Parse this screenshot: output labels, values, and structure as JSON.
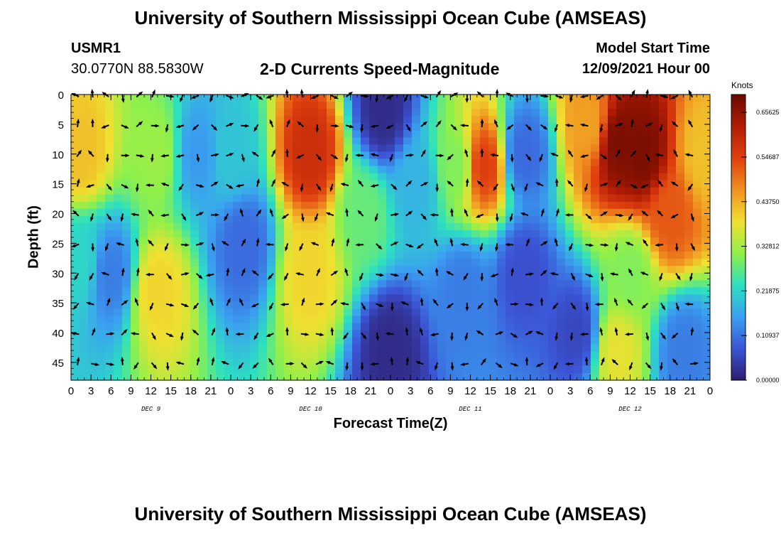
{
  "header": {
    "title": "University of Southern Mississippi Ocean Cube (AMSEAS)",
    "station": "USMR1",
    "coordinates": "30.0770N  88.5830W",
    "subtitle": "2-D Currents Speed-Magnitude",
    "model_start_label": "Model Start Time",
    "model_start_value": "12/09/2021 Hour 00"
  },
  "footer": {
    "title": "University of Southern Mississippi Ocean Cube (AMSEAS)"
  },
  "chart_data": {
    "type": "heatmap",
    "xlabel": "Forecast Time(Z)",
    "ylabel": "Depth (ft)",
    "x_tick_labels": [
      "0",
      "3",
      "6",
      "9",
      "12",
      "15",
      "18",
      "21",
      "0",
      "3",
      "6",
      "9",
      "12",
      "15",
      "18",
      "21",
      "0",
      "3",
      "6",
      "9",
      "12",
      "15",
      "18",
      "21",
      "0",
      "3",
      "6",
      "9",
      "12",
      "15",
      "18",
      "21",
      "0"
    ],
    "day_labels": [
      {
        "label": "DEC 9",
        "hour": 12
      },
      {
        "label": "DEC 10",
        "hour": 36
      },
      {
        "label": "DEC 11",
        "hour": 60
      },
      {
        "label": "DEC 12",
        "hour": 84
      }
    ],
    "xlim": [
      0,
      96
    ],
    "y_tick_labels": [
      "0",
      "5",
      "10",
      "15",
      "20",
      "25",
      "30",
      "35",
      "40",
      "45"
    ],
    "y_ticks": [
      0,
      5,
      10,
      15,
      20,
      25,
      30,
      35,
      40,
      45
    ],
    "ylim": [
      0,
      48
    ],
    "colorbar": {
      "units": "Knots",
      "ticks": [
        "0.00000",
        "0.10937",
        "0.21875",
        "0.32812",
        "0.43750",
        "0.54687",
        "0.65625"
      ],
      "range": [
        0,
        0.7
      ],
      "colormap": [
        "#2d1e6e",
        "#3b55d6",
        "#3aa0f0",
        "#2ce0c0",
        "#8ff04a",
        "#f0e030",
        "#f09020",
        "#e04010",
        "#b01c05",
        "#6a0a00"
      ]
    },
    "speed_features": [
      {
        "hour": 1.5,
        "depth": 10,
        "speed": 0.42
      },
      {
        "hour": 1.5,
        "depth": 28,
        "speed": 0.22
      },
      {
        "hour": 13,
        "depth": 10,
        "speed": 0.32
      },
      {
        "hour": 13,
        "depth": 33,
        "speed": 0.4
      },
      {
        "hour": 6,
        "depth": 30,
        "speed": 0.12
      },
      {
        "hour": 19,
        "depth": 10,
        "speed": 0.15
      },
      {
        "hour": 24,
        "depth": 10,
        "speed": 0.2
      },
      {
        "hour": 26,
        "depth": 25,
        "speed": 0.1
      },
      {
        "hour": 36,
        "depth": 10,
        "speed": 0.58
      },
      {
        "hour": 36,
        "depth": 30,
        "speed": 0.4
      },
      {
        "hour": 44,
        "depth": 20,
        "speed": 0.28
      },
      {
        "hour": 47,
        "depth": 3,
        "speed": 0.02
      },
      {
        "hour": 52,
        "depth": 15,
        "speed": 0.18
      },
      {
        "hour": 48,
        "depth": 43,
        "speed": 0.02
      },
      {
        "hour": 58,
        "depth": 12,
        "speed": 0.3
      },
      {
        "hour": 62,
        "depth": 12,
        "speed": 0.55
      },
      {
        "hour": 59,
        "depth": 33,
        "speed": 0.12
      },
      {
        "hour": 68,
        "depth": 10,
        "speed": 0.1
      },
      {
        "hour": 68,
        "depth": 30,
        "speed": 0.07
      },
      {
        "hour": 78,
        "depth": 5,
        "speed": 0.45
      },
      {
        "hour": 82,
        "depth": 8,
        "speed": 0.68
      },
      {
        "hour": 86,
        "depth": 10,
        "speed": 0.68
      },
      {
        "hour": 90,
        "depth": 20,
        "speed": 0.52
      },
      {
        "hour": 95,
        "depth": 10,
        "speed": 0.42
      },
      {
        "hour": 84,
        "depth": 30,
        "speed": 0.3
      },
      {
        "hour": 82,
        "depth": 43,
        "speed": 0.38
      },
      {
        "hour": 76,
        "depth": 40,
        "speed": 0.06
      },
      {
        "hour": 92,
        "depth": 43,
        "speed": 0.12
      }
    ]
  }
}
